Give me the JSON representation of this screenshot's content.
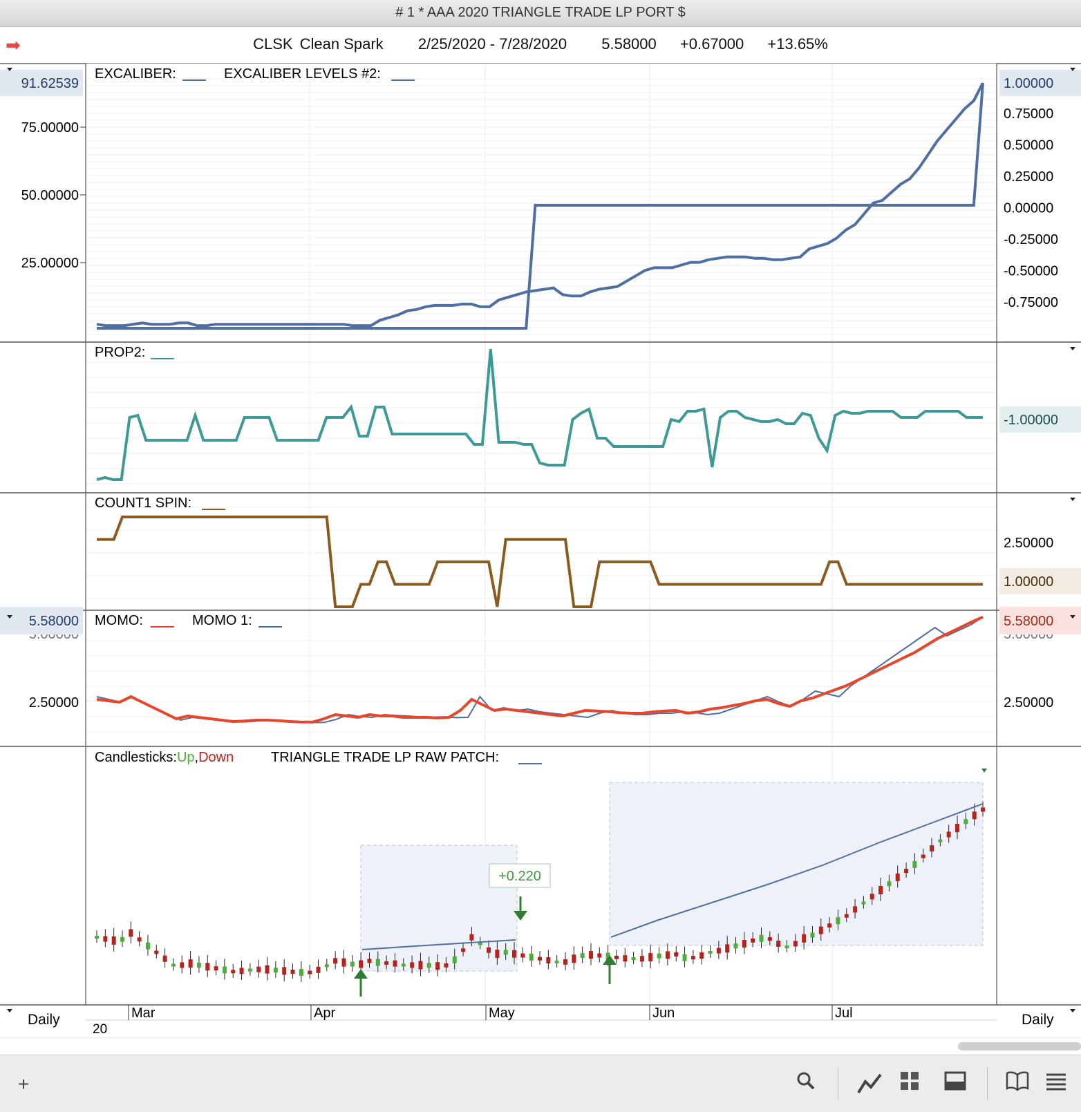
{
  "window": {
    "title": "# 1 * AAA 2020 TRIANGLE TRADE LP  PORT $"
  },
  "header": {
    "symbol": "CLSK",
    "name": "Clean Spark",
    "date_range": "2/25/2020 - 7/28/2020",
    "last": "5.58000",
    "change": "+0.67000",
    "change_pct": "+13.65%",
    "arrow_icon": "right-arrow-icon"
  },
  "colors": {
    "blue_line": "#4f6fa3",
    "teal_line": "#3e9a96",
    "brown_line": "#8b5a1e",
    "red_line": "#e8452a",
    "up": "#4caf3a",
    "down": "#b8221a"
  },
  "panels": {
    "excaliber": {
      "labels": [
        "EXCALIBER:",
        "EXCALIBER LEVELS #2:"
      ],
      "left_axis": [
        "75.00000",
        "50.00000",
        "25.00000"
      ],
      "left_badge": "91.62539",
      "right_axis": [
        "0.75000",
        "0.50000",
        "0.25000",
        "0.00000",
        "-0.25000",
        "-0.50000",
        "-0.75000"
      ],
      "right_badge": "1.00000"
    },
    "prop2": {
      "label": "PROP2:",
      "right_badge": "-1.00000"
    },
    "count1": {
      "label": "COUNT1 SPIN:",
      "right_axis": [
        "2.50000"
      ],
      "right_badge": "1.00000"
    },
    "momo": {
      "labels": [
        "MOMO:",
        "MOMO 1:"
      ],
      "left_badge": "5.58000",
      "left_axis": [
        "2.50000"
      ],
      "right_badge": "5.58000",
      "right_axis": [
        "2.50000"
      ],
      "partial_tick": "5.00000"
    },
    "candles": {
      "label": "Candlesticks:",
      "up": "Up",
      "comma": ",",
      "down": "Down",
      "study": "TRIANGLE TRADE LP RAW PATCH:",
      "trade_label": "+0.220"
    }
  },
  "time_axis": {
    "months": [
      "Mar",
      "Apr",
      "May",
      "Jun",
      "Jul"
    ],
    "year": "20",
    "left_period": "Daily",
    "right_period": "Daily"
  },
  "toolbar": {
    "icons": [
      "plus-icon",
      "search-icon",
      "draw-icon",
      "layout-grid-icon",
      "panel-icon",
      "book-icon",
      "menu-icon"
    ]
  },
  "chart_data": [
    {
      "type": "line",
      "title": "EXCALIBER",
      "series": [
        {
          "name": "EXCALIBER",
          "values": [
            2,
            1.5,
            1.5,
            1.5,
            2,
            2.5,
            2,
            2,
            2,
            2.5,
            2.5,
            1.5,
            1.5,
            2,
            2,
            2,
            2,
            2,
            2,
            2,
            2,
            2,
            2,
            2,
            2,
            2,
            2,
            2,
            1.5,
            1.5,
            1.5,
            3.5,
            4.5,
            5.5,
            7,
            7.5,
            8.5,
            9,
            9,
            9,
            9.5,
            9.5,
            8.5,
            8.5,
            11,
            12,
            13,
            14,
            14.5,
            15,
            15.5,
            13,
            12.5,
            12.5,
            14,
            15,
            15.5,
            16,
            18,
            20,
            22,
            23,
            23,
            23,
            24,
            25,
            25,
            26,
            26.5,
            27,
            27,
            27,
            26.5,
            26.5,
            26,
            26,
            26.5,
            27,
            30,
            31,
            32,
            34,
            37,
            39,
            43,
            47,
            48,
            51,
            54,
            56,
            60,
            65,
            70,
            74,
            78,
            82,
            85,
            91.6
          ]
        },
        {
          "name": "EXCALIBER LEVELS #2",
          "values": [
            -1,
            -1,
            -1,
            -1,
            -1,
            -1,
            -1,
            -1,
            -1,
            -1,
            -1,
            -1,
            -1,
            -1,
            -1,
            -1,
            -1,
            -1,
            -1,
            -1,
            -1,
            -1,
            -1,
            -1,
            -1,
            -1,
            -1,
            -1,
            -1,
            -1,
            -1,
            -1,
            -1,
            -1,
            -1,
            -1,
            -1,
            -1,
            -1,
            -1,
            -1,
            -1,
            -1,
            -1,
            -1,
            -1,
            -1,
            -1,
            0,
            0,
            0,
            0,
            0,
            0,
            0,
            0,
            0,
            0,
            0,
            0,
            0,
            0,
            0,
            0,
            0,
            0,
            0,
            0,
            0,
            0,
            0,
            0,
            0,
            0,
            0,
            0,
            0,
            0,
            0,
            0,
            0,
            0,
            0,
            0,
            0,
            0,
            0,
            0,
            0,
            0,
            0,
            0,
            0,
            0,
            0,
            0,
            0,
            1
          ]
        }
      ]
    },
    {
      "type": "line",
      "title": "PROP2",
      "series": [
        {
          "name": "PROP2",
          "values": [
            -4,
            -3.9,
            -4,
            -4,
            -1,
            -0.9,
            -2.1,
            -2.1,
            -2.1,
            -2.1,
            -2.1,
            -2.1,
            -0.9,
            -2.1,
            -2.1,
            -2.1,
            -2.1,
            -2.1,
            -1,
            -1,
            -1,
            -1,
            -2.1,
            -2.1,
            -2.1,
            -2.1,
            -2.1,
            -2.1,
            -1,
            -1,
            -1,
            -0.5,
            -1.9,
            -1.9,
            -0.5,
            -0.5,
            -1.8,
            -1.8,
            -1.8,
            -1.8,
            -1.8,
            -1.8,
            -1.8,
            -1.8,
            -1.8,
            -1.8,
            -2.3,
            -2.3,
            2.3,
            -2.2,
            -2.2,
            -2.2,
            -2.3,
            -2.3,
            -3.2,
            -3.3,
            -3.3,
            -3.3,
            -1.1,
            -0.8,
            -0.6,
            -2.0,
            -2.0,
            -2.4,
            -2.4,
            -2.4,
            -2.4,
            -2.4,
            -2.4,
            -2.4,
            -1.1,
            -1.2,
            -0.7,
            -0.7,
            -0.6,
            -3.4,
            -1.0,
            -0.7,
            -0.7,
            -1.0,
            -1.1,
            -1.2,
            -1.2,
            -1.1,
            -1.3,
            -1.3,
            -0.8,
            -0.9,
            -2.0,
            -2.6,
            -0.9,
            -0.7,
            -0.8,
            -0.8,
            -0.7,
            -0.7,
            -0.7,
            -0.7,
            -1.0,
            -1.0,
            -1.0,
            -0.7,
            -0.7,
            -0.7,
            -0.7,
            -0.7,
            -1.0,
            -1.0,
            -1.0
          ]
        }
      ]
    },
    {
      "type": "line",
      "title": "COUNT1 SPIN",
      "series": [
        {
          "name": "COUNT1 SPIN",
          "values": [
            3,
            3,
            3,
            4,
            4,
            4,
            4,
            4,
            4,
            4,
            4,
            4,
            4,
            4,
            4,
            4,
            4,
            4,
            4,
            4,
            4,
            4,
            4,
            4,
            4,
            4,
            4,
            4,
            0,
            0,
            0,
            1,
            1,
            2,
            2,
            1,
            1,
            1,
            1,
            1,
            2,
            2,
            2,
            2,
            2,
            2,
            2,
            0,
            3,
            3,
            3,
            3,
            3,
            3,
            3,
            3,
            0,
            0,
            0,
            2,
            2,
            2,
            2,
            2,
            2,
            2,
            1,
            1,
            1,
            1,
            1,
            1,
            1,
            1,
            1,
            1,
            1,
            1,
            1,
            1,
            1,
            1,
            1,
            1,
            1,
            1,
            2,
            2,
            1,
            1,
            1,
            1,
            1,
            1,
            1,
            1,
            1,
            1,
            1,
            1,
            1,
            1,
            1,
            1,
            1
          ]
        }
      ]
    },
    {
      "type": "line",
      "title": "MOMO",
      "series": [
        {
          "name": "MOMO",
          "values": [
            2.6,
            2.55,
            2.5,
            2.7,
            2.5,
            2.3,
            2.1,
            1.9,
            2.0,
            1.95,
            1.9,
            1.85,
            1.8,
            1.82,
            1.85,
            1.85,
            1.83,
            1.8,
            1.78,
            1.78,
            1.9,
            2.05,
            2.0,
            1.95,
            2.05,
            2.0,
            2.0,
            1.95,
            1.95,
            1.95,
            1.93,
            1.95,
            2.2,
            2.6,
            2.4,
            2.2,
            2.25,
            2.2,
            2.15,
            2.1,
            2.05,
            2.0,
            2.1,
            2.2,
            2.18,
            2.16,
            2.12,
            2.1,
            2.1,
            2.15,
            2.18,
            2.2,
            2.1,
            2.15,
            2.25,
            2.3,
            2.38,
            2.45,
            2.55,
            2.6,
            2.45,
            2.35,
            2.55,
            2.65,
            2.8,
            2.95,
            3.1,
            3.3,
            3.5,
            3.7,
            3.9,
            4.1,
            4.3,
            4.55,
            4.8,
            5.0,
            5.2,
            5.4,
            5.58
          ]
        },
        {
          "name": "MOMO 1",
          "values": [
            2.7,
            2.6,
            2.5,
            2.7,
            2.45,
            2.25,
            2.05,
            1.85,
            1.95,
            1.9,
            1.85,
            1.8,
            1.78,
            1.8,
            1.85,
            1.85,
            1.82,
            1.78,
            1.76,
            1.77,
            1.88,
            2.05,
            1.98,
            1.95,
            2.05,
            2.02,
            2.0,
            1.97,
            1.96,
            1.97,
            1.94,
            1.95,
            2.7,
            2.2,
            2.3,
            2.2,
            2.25,
            2.15,
            2.1,
            2.05,
            2.0,
            1.95,
            2.1,
            2.2,
            2.1,
            2.05,
            2.05,
            2.1,
            2.1,
            2.15,
            2.12,
            2.05,
            2.1,
            2.25,
            2.4,
            2.55,
            2.7,
            2.5,
            2.35,
            2.6,
            2.9,
            2.8,
            2.7,
            3.1,
            3.4,
            3.7,
            4.0,
            4.3,
            4.6,
            4.9,
            5.2,
            4.9,
            5.1,
            5.3,
            5.58
          ]
        }
      ]
    }
  ]
}
